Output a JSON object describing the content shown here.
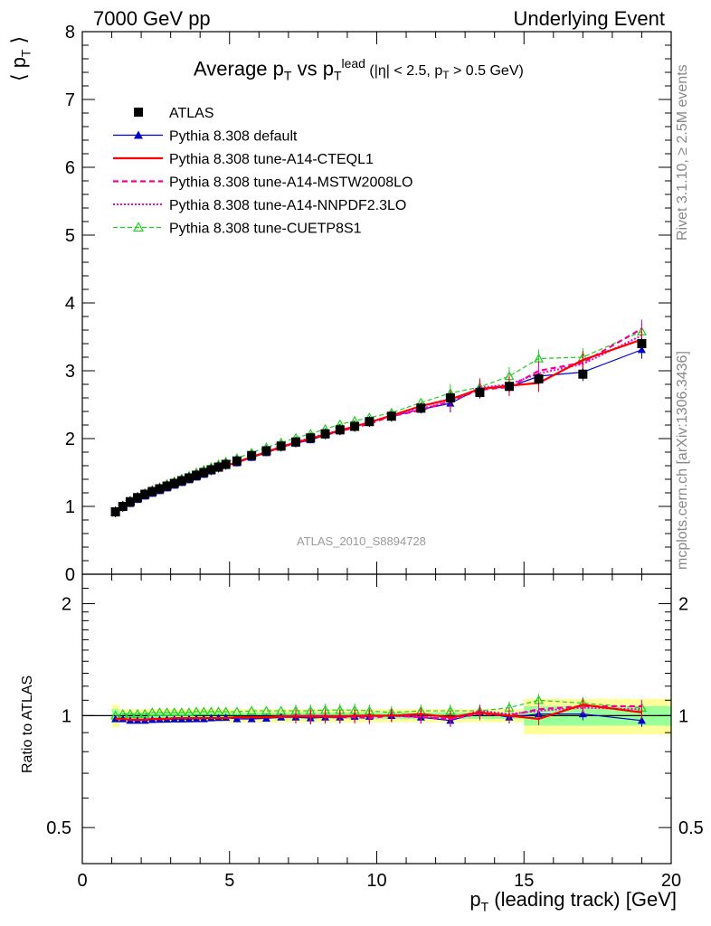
{
  "header": {
    "left": "7000 GeV pp",
    "right": "Underlying Event"
  },
  "side_labels": {
    "rivet": "Rivet 3.1.10, ≥ 2.5M events",
    "mcplots": "mcplots.cern.ch [arXiv:1306.3436]"
  },
  "analysis_id": "ATLAS_2010_S8894728",
  "colors": {
    "data": "#000000",
    "default": "#0000cc",
    "cteql1": "#ff0000",
    "mstw": "#ee0099",
    "nnpdf": "#ff00cc",
    "cuetp": "#22cc22",
    "band_yellow": "#ffff99",
    "band_green": "#99ff99"
  },
  "chart_data": [
    {
      "type": "line",
      "title": "Average p_T vs p_T^lead (|η| < 2.5, p_T > 0.5 GeV)",
      "title_parts": {
        "t1": "Average p",
        "t1sub": "T",
        "t2": " vs p",
        "t2sub": "T",
        "t2sup": "lead",
        "t3": " (|η| < 2.5, p",
        "t3sub": "T",
        "t4": " > 0.5 GeV)"
      },
      "ylabel": "⟨ p_T ⟩",
      "ylabel_parts": {
        "l": "⟨ p",
        "sub": "T",
        "r": " ⟩"
      },
      "xlim": [
        0,
        20
      ],
      "ylim": [
        0,
        8
      ],
      "yticks": [
        "0",
        "1",
        "2",
        "3",
        "4",
        "5",
        "6",
        "7",
        "8"
      ],
      "legend_position": "top-left",
      "x": [
        1.125,
        1.375,
        1.625,
        1.875,
        2.125,
        2.375,
        2.625,
        2.875,
        3.125,
        3.375,
        3.625,
        3.875,
        4.125,
        4.375,
        4.625,
        4.875,
        5.25,
        5.75,
        6.25,
        6.75,
        7.25,
        7.75,
        8.25,
        8.75,
        9.25,
        9.75,
        10.5,
        11.5,
        12.5,
        13.5,
        14.5,
        15.5,
        17.0,
        19.0
      ],
      "series": [
        {
          "name": "ATLAS",
          "key": "data",
          "values": [
            0.92,
            1.0,
            1.07,
            1.13,
            1.18,
            1.22,
            1.26,
            1.3,
            1.34,
            1.38,
            1.42,
            1.46,
            1.5,
            1.54,
            1.58,
            1.62,
            1.67,
            1.75,
            1.82,
            1.89,
            1.95,
            2.01,
            2.07,
            2.13,
            2.18,
            2.25,
            2.33,
            2.45,
            2.6,
            2.68,
            2.77,
            2.88,
            2.95,
            3.4
          ]
        },
        {
          "name": "Pythia 8.308 default",
          "key": "default",
          "values": [
            0.9,
            0.98,
            1.04,
            1.1,
            1.15,
            1.19,
            1.23,
            1.27,
            1.31,
            1.35,
            1.39,
            1.43,
            1.47,
            1.52,
            1.56,
            1.6,
            1.64,
            1.72,
            1.79,
            1.87,
            1.93,
            1.98,
            2.05,
            2.11,
            2.17,
            2.24,
            2.33,
            2.43,
            2.52,
            2.74,
            2.76,
            2.92,
            2.98,
            3.31
          ]
        },
        {
          "name": "Pythia 8.308 tune-A14-CTEQL1",
          "key": "cteql1",
          "values": [
            0.9,
            0.98,
            1.04,
            1.1,
            1.15,
            1.2,
            1.24,
            1.28,
            1.32,
            1.36,
            1.4,
            1.44,
            1.48,
            1.52,
            1.56,
            1.6,
            1.65,
            1.73,
            1.8,
            1.88,
            1.94,
            2.0,
            2.06,
            2.12,
            2.18,
            2.24,
            2.34,
            2.48,
            2.58,
            2.73,
            2.78,
            2.82,
            3.16,
            3.46
          ]
        },
        {
          "name": "Pythia 8.308 tune-A14-MSTW2008LO",
          "key": "mstw",
          "values": [
            0.9,
            0.98,
            1.04,
            1.1,
            1.15,
            1.2,
            1.24,
            1.28,
            1.32,
            1.36,
            1.4,
            1.44,
            1.48,
            1.52,
            1.56,
            1.6,
            1.65,
            1.73,
            1.8,
            1.87,
            1.94,
            2.0,
            2.05,
            2.11,
            2.16,
            2.22,
            2.33,
            2.42,
            2.55,
            2.72,
            2.76,
            3.0,
            3.12,
            3.62
          ]
        },
        {
          "name": "Pythia 8.308 tune-A14-NNPDF2.3LO",
          "key": "nnpdf",
          "values": [
            0.9,
            0.98,
            1.04,
            1.1,
            1.15,
            1.2,
            1.24,
            1.28,
            1.32,
            1.36,
            1.4,
            1.44,
            1.48,
            1.52,
            1.56,
            1.6,
            1.65,
            1.73,
            1.8,
            1.88,
            1.95,
            2.01,
            2.07,
            2.12,
            2.18,
            2.24,
            2.34,
            2.44,
            2.55,
            2.75,
            2.8,
            2.96,
            3.1,
            3.52
          ]
        },
        {
          "name": "Pythia 8.308 tune-CUETP8S1",
          "key": "cuetp",
          "values": [
            0.92,
            1.01,
            1.08,
            1.14,
            1.19,
            1.24,
            1.28,
            1.33,
            1.37,
            1.41,
            1.45,
            1.5,
            1.54,
            1.58,
            1.62,
            1.66,
            1.71,
            1.79,
            1.87,
            1.94,
            2.01,
            2.07,
            2.14,
            2.21,
            2.26,
            2.31,
            2.38,
            2.53,
            2.67,
            2.76,
            2.92,
            3.18,
            3.2,
            3.58
          ]
        }
      ]
    },
    {
      "type": "line",
      "ylabel": "Ratio to ATLAS",
      "xlabel": "p_T (leading track) [GeV]",
      "xlabel_parts": {
        "l": "p",
        "sub": "T",
        "r": " (leading track) [GeV]"
      },
      "xlim": [
        0,
        20
      ],
      "ylim": [
        0.4,
        2.4
      ],
      "xticks": [
        "0",
        "5",
        "10",
        "15",
        "20"
      ],
      "yticks": [
        "0.5",
        "1",
        "2"
      ],
      "yticks_right": [
        "0.5",
        "1",
        "2"
      ],
      "band": {
        "x_edges": [
          1.0,
          1.25,
          15.0,
          20.0
        ],
        "yellow": [
          [
            0.93,
            1.07
          ],
          [
            0.96,
            1.04
          ],
          [
            0.89,
            1.11
          ]
        ],
        "green": [
          [
            0.96,
            1.04
          ],
          [
            0.98,
            1.02
          ],
          [
            0.94,
            1.06
          ]
        ]
      },
      "series": [
        {
          "name": "Pythia 8.308 default",
          "key": "default",
          "values": [
            0.98,
            0.98,
            0.97,
            0.97,
            0.97,
            0.975,
            0.976,
            0.977,
            0.978,
            0.978,
            0.979,
            0.98,
            0.98,
            0.985,
            0.987,
            0.988,
            0.98,
            0.98,
            0.983,
            0.99,
            0.99,
            0.985,
            0.99,
            0.99,
            0.995,
            0.995,
            1.0,
            0.99,
            0.97,
            1.02,
            0.99,
            1.01,
            1.01,
            0.97
          ]
        },
        {
          "name": "Pythia 8.308 tune-A14-CTEQL1",
          "key": "cteql1",
          "values": [
            0.98,
            0.98,
            0.975,
            0.975,
            0.975,
            0.98,
            0.98,
            0.98,
            0.985,
            0.985,
            0.985,
            0.985,
            0.985,
            0.985,
            0.985,
            0.985,
            0.99,
            0.99,
            0.99,
            0.995,
            0.995,
            0.995,
            0.995,
            0.995,
            1.0,
            1.0,
            1.0,
            1.01,
            0.99,
            1.02,
            1.0,
            0.98,
            1.07,
            1.02
          ]
        },
        {
          "name": "Pythia 8.308 tune-A14-MSTW2008LO",
          "key": "mstw",
          "values": [
            0.98,
            0.98,
            0.975,
            0.975,
            0.975,
            0.98,
            0.98,
            0.98,
            0.985,
            0.985,
            0.985,
            0.985,
            0.985,
            0.985,
            0.985,
            0.985,
            0.99,
            0.99,
            0.99,
            0.99,
            0.995,
            0.995,
            0.99,
            0.99,
            0.99,
            0.985,
            1.0,
            0.99,
            0.98,
            1.01,
            1.0,
            1.04,
            1.06,
            1.06
          ]
        },
        {
          "name": "Pythia 8.308 tune-A14-NNPDF2.3LO",
          "key": "nnpdf",
          "values": [
            0.98,
            0.98,
            0.975,
            0.975,
            0.975,
            0.98,
            0.98,
            0.98,
            0.985,
            0.985,
            0.985,
            0.985,
            0.985,
            0.985,
            0.985,
            0.985,
            0.99,
            0.99,
            0.99,
            0.995,
            1.0,
            1.0,
            1.0,
            0.995,
            1.0,
            0.995,
            1.0,
            0.995,
            0.98,
            1.03,
            1.01,
            1.03,
            1.05,
            1.04
          ]
        },
        {
          "name": "Pythia 8.308 tune-CUETP8S1",
          "key": "cuetp",
          "values": [
            1.0,
            1.01,
            1.01,
            1.01,
            1.01,
            1.02,
            1.02,
            1.02,
            1.02,
            1.02,
            1.02,
            1.025,
            1.025,
            1.025,
            1.025,
            1.025,
            1.025,
            1.03,
            1.03,
            1.03,
            1.03,
            1.03,
            1.035,
            1.035,
            1.035,
            1.03,
            1.02,
            1.03,
            1.03,
            1.03,
            1.05,
            1.1,
            1.08,
            1.05
          ]
        }
      ]
    }
  ]
}
